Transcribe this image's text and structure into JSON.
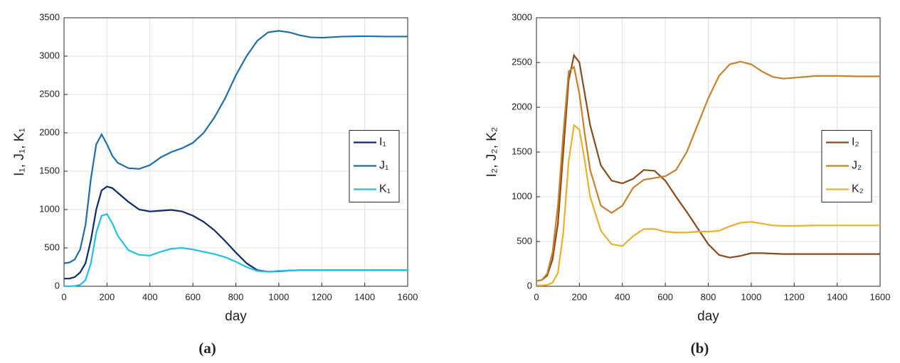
{
  "chart_data": [
    {
      "type": "line",
      "xlabel": "day",
      "ylabel": "I₁, J₁, K₁",
      "caption": "(a)",
      "grid": true,
      "legend": "right",
      "x": [
        0,
        25,
        50,
        75,
        100,
        125,
        150,
        175,
        200,
        225,
        250,
        300,
        350,
        400,
        450,
        500,
        550,
        600,
        650,
        700,
        750,
        800,
        850,
        900,
        950,
        1000,
        1050,
        1100,
        1150,
        1200,
        1300,
        1400,
        1500,
        1600
      ],
      "xlim": [
        0,
        1600
      ],
      "xticks": [
        0,
        200,
        400,
        600,
        800,
        1000,
        1200,
        1400,
        1600
      ],
      "ylim": [
        0,
        3500
      ],
      "yticks": [
        0,
        500,
        1000,
        1500,
        2000,
        2500,
        3000,
        3500
      ],
      "series": [
        {
          "name": "I₁",
          "color": "#0d2a6e",
          "values": [
            100,
            100,
            120,
            180,
            300,
            600,
            1000,
            1250,
            1300,
            1280,
            1220,
            1100,
            1000,
            975,
            985,
            995,
            975,
            920,
            840,
            730,
            590,
            440,
            300,
            210,
            190,
            195,
            205,
            210,
            210,
            210,
            210,
            210,
            210,
            210
          ]
        },
        {
          "name": "J₁",
          "color": "#1b6fae",
          "values": [
            300,
            310,
            350,
            480,
            800,
            1400,
            1850,
            1980,
            1850,
            1700,
            1610,
            1540,
            1530,
            1580,
            1680,
            1750,
            1800,
            1870,
            2000,
            2200,
            2450,
            2750,
            3000,
            3200,
            3310,
            3330,
            3310,
            3270,
            3245,
            3240,
            3255,
            3260,
            3255,
            3255
          ]
        },
        {
          "name": "K₁",
          "color": "#1ec0e8",
          "values": [
            0,
            0,
            5,
            20,
            80,
            300,
            700,
            920,
            940,
            820,
            660,
            470,
            410,
            400,
            450,
            490,
            500,
            480,
            450,
            420,
            380,
            320,
            250,
            200,
            190,
            200,
            205,
            210,
            210,
            210,
            210,
            210,
            210,
            210
          ]
        }
      ]
    },
    {
      "type": "line",
      "xlabel": "day",
      "ylabel": "I₂, J₂, K₂",
      "caption": "(b)",
      "grid": true,
      "legend": "right",
      "x": [
        0,
        25,
        50,
        75,
        100,
        125,
        150,
        175,
        200,
        225,
        250,
        300,
        350,
        400,
        450,
        500,
        550,
        600,
        650,
        700,
        750,
        800,
        850,
        900,
        950,
        1000,
        1050,
        1100,
        1150,
        1200,
        1300,
        1400,
        1500,
        1600
      ],
      "xlim": [
        0,
        1600
      ],
      "xticks": [
        0,
        200,
        400,
        600,
        800,
        1000,
        1200,
        1400,
        1600
      ],
      "ylim": [
        0,
        3000
      ],
      "yticks": [
        0,
        500,
        1000,
        1500,
        2000,
        2500,
        3000
      ],
      "series": [
        {
          "name": "I₂",
          "color": "#8b4a1c",
          "values": [
            60,
            70,
            120,
            300,
            700,
            1500,
            2300,
            2580,
            2500,
            2150,
            1800,
            1350,
            1180,
            1150,
            1200,
            1300,
            1290,
            1180,
            1000,
            830,
            650,
            470,
            350,
            320,
            340,
            370,
            370,
            365,
            360,
            360,
            360,
            360,
            360,
            360
          ]
        },
        {
          "name": "J₂",
          "color": "#c8802a",
          "values": [
            60,
            70,
            140,
            380,
            900,
            1700,
            2400,
            2450,
            2150,
            1700,
            1300,
            900,
            820,
            900,
            1100,
            1190,
            1210,
            1230,
            1300,
            1500,
            1800,
            2100,
            2350,
            2480,
            2510,
            2480,
            2400,
            2340,
            2320,
            2330,
            2350,
            2350,
            2345,
            2345
          ]
        },
        {
          "name": "K₂",
          "color": "#ebb02a",
          "values": [
            10,
            10,
            15,
            40,
            150,
            600,
            1400,
            1800,
            1750,
            1400,
            1000,
            620,
            470,
            450,
            560,
            640,
            640,
            610,
            600,
            600,
            610,
            610,
            620,
            670,
            710,
            720,
            700,
            680,
            675,
            675,
            680,
            680,
            680,
            680
          ]
        }
      ]
    }
  ]
}
